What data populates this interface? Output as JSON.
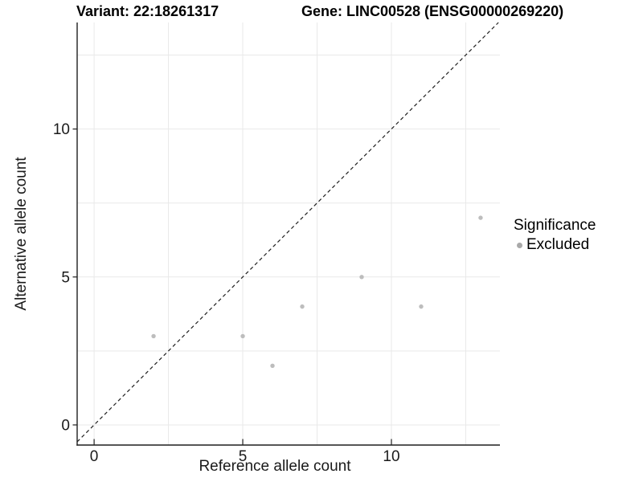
{
  "header": {
    "variant_title": "Variant: 22:18261317",
    "gene_title": "Gene: LINC00528 (ENSG00000269220)"
  },
  "axes": {
    "x_label": "Reference allele count",
    "y_label": "Alternative allele count"
  },
  "legend": {
    "title": "Significance",
    "items": [
      {
        "label": "Excluded",
        "color": "#a9a9a9"
      }
    ]
  },
  "colors": {
    "background": "#ffffff",
    "grid": "#e9e9e9",
    "axis_line": "#1f1f1f",
    "tick_mark": "#1f1f1f",
    "tick_text": "#1a1a1a",
    "dashed_line": "#1f1f1f",
    "point": "#bdbdbd"
  },
  "chart_data": {
    "type": "scatter",
    "title_left": "Variant: 22:18261317",
    "title_right": "Gene: LINC00528 (ENSG00000269220)",
    "xlabel": "Reference allele count",
    "ylabel": "Alternative allele count",
    "series": [
      {
        "name": "Excluded",
        "color": "#bdbdbd",
        "points": [
          [
            2,
            3
          ],
          [
            5,
            3
          ],
          [
            6,
            2
          ],
          [
            7,
            4
          ],
          [
            9,
            5
          ],
          [
            11,
            4
          ],
          [
            13,
            7
          ]
        ]
      }
    ],
    "xlim": [
      -0.57,
      13.65
    ],
    "ylim": [
      -0.68,
      13.6
    ],
    "x_major_ticks": [
      0,
      5,
      10
    ],
    "x_tick_labels": [
      "0",
      "5",
      "10"
    ],
    "y_major_ticks": [
      0,
      5,
      10
    ],
    "y_tick_labels": [
      "0",
      "5",
      "10"
    ],
    "x_gridlines": [
      0,
      2.5,
      5,
      7.5,
      10,
      12.5
    ],
    "y_gridlines": [
      0,
      2.5,
      5,
      7.5,
      10,
      12.5
    ],
    "identity_line": {
      "slope": 1,
      "intercept": 0,
      "style": "dashed"
    },
    "grid": true,
    "legend_position": "right",
    "legend_title": "Significance"
  }
}
